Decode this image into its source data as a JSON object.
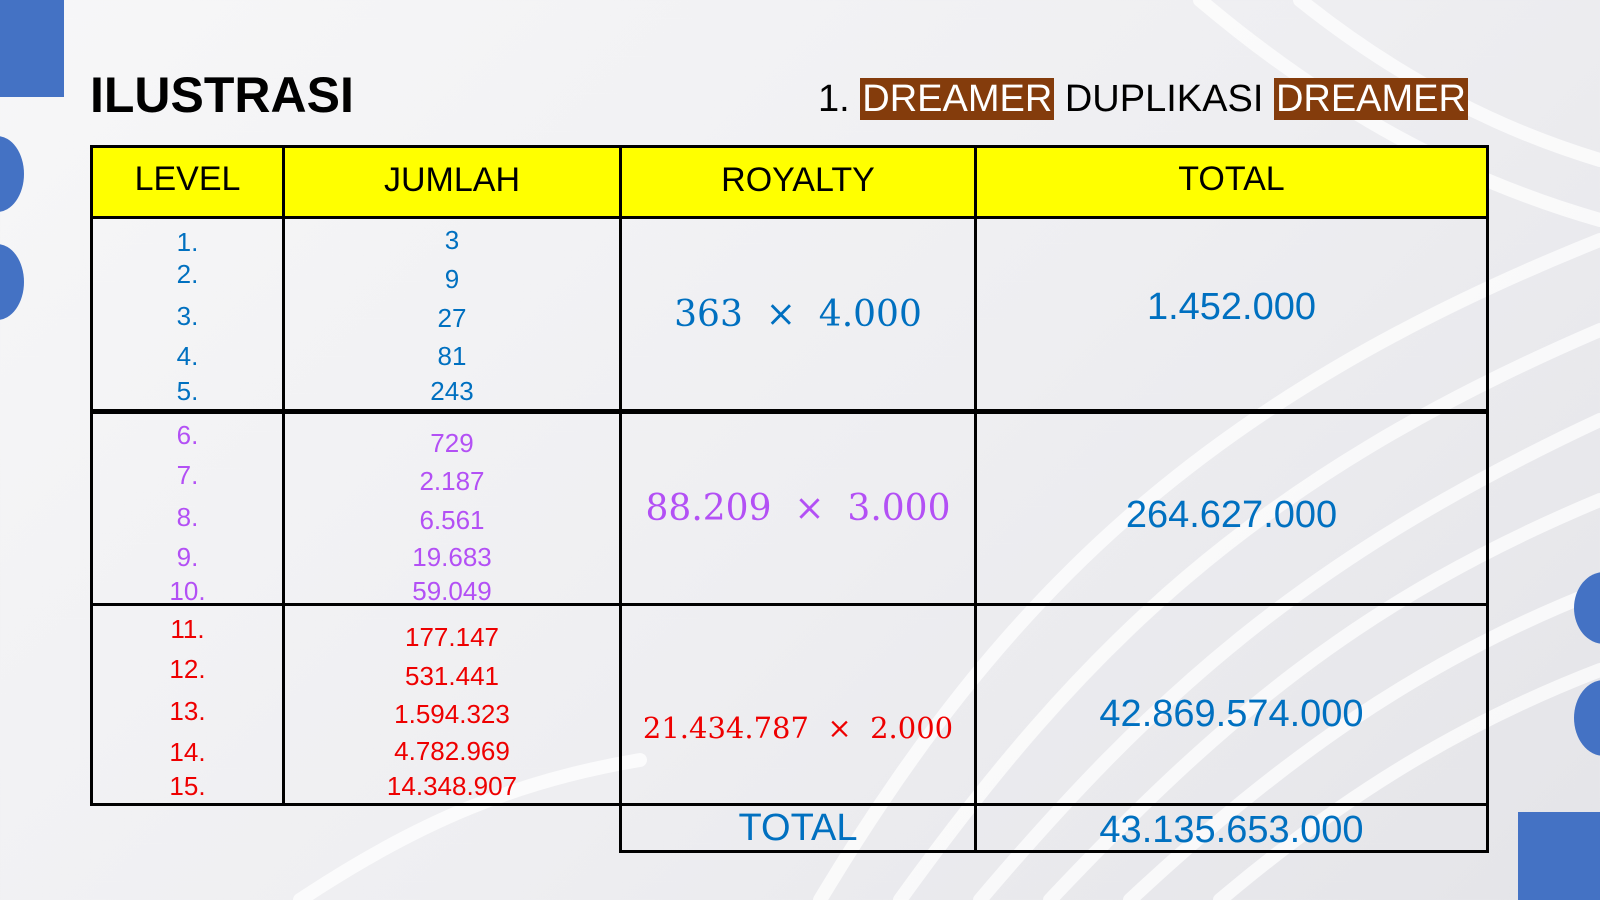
{
  "title": "ILUSTRASI",
  "subtitle": {
    "prefix": "1.",
    "word1": "DREAMER",
    "middle": "DUPLIKASI",
    "word2": "DREAMER"
  },
  "headers": {
    "level": "LEVEL",
    "jumlah": "JUMLAH",
    "royalty": "ROYALTY",
    "total": "TOTAL"
  },
  "groups": [
    {
      "color": "#0070c0",
      "levels": [
        "1.",
        "2.",
        "3.",
        "4.",
        "5."
      ],
      "counts": [
        "3",
        "9",
        "27",
        "81",
        "243"
      ],
      "royalty": "363  ×  4.000",
      "total": "1.452.000"
    },
    {
      "color": "#b350f5",
      "levels": [
        "6.",
        "7.",
        "8.",
        "9.",
        "10."
      ],
      "counts": [
        "729",
        "2.187",
        "6.561",
        "19.683",
        "59.049"
      ],
      "royalty": "88.209  ×  3.000",
      "total": "264.627.000"
    },
    {
      "color": "#ee0000",
      "levels": [
        "11.",
        "12.",
        "13.",
        "14.",
        "15."
      ],
      "counts": [
        "177.147",
        "531.441",
        "1.594.323",
        "4.782.969",
        "14.348.907"
      ],
      "royalty": "21.434.787  ×  2.000",
      "total": "42.869.574.000"
    }
  ],
  "grand_total": {
    "label": "TOTAL",
    "value": "43.135.653.000"
  }
}
